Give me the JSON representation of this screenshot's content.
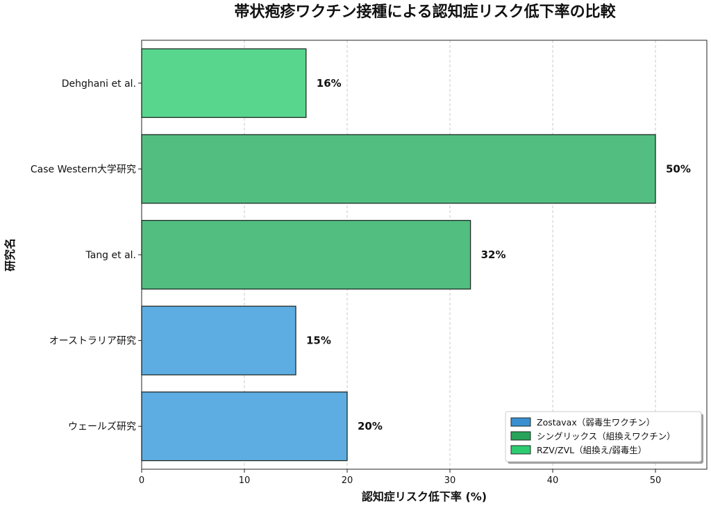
{
  "chart_data": {
    "type": "bar",
    "orientation": "horizontal",
    "title": "帯状疱疹ワクチン接種による認知症リスク低下率の比較",
    "xlabel": "認知症リスク低下率 (%)",
    "ylabel": "研究名",
    "xlim": [
      0,
      55
    ],
    "xticks": [
      0,
      10,
      20,
      30,
      40,
      50
    ],
    "grid": "x-dashed",
    "legend_position": "bottom-right",
    "categories": [
      "ウェールズ研究",
      "オーストラリア研究",
      "Tang et al.",
      "Case Western大学研究",
      "Dehghani et al."
    ],
    "values": [
      20,
      15,
      32,
      50,
      16
    ],
    "data_labels": [
      "20%",
      "15%",
      "32%",
      "50%",
      "16%"
    ],
    "bar_series": [
      0,
      0,
      1,
      1,
      2
    ],
    "series": [
      {
        "name": "Zostavax（弱毒生ワクチン）",
        "color": "#3a8fd0",
        "bar_color": "#5dade2"
      },
      {
        "name": "シングリックス（組換えワクチン）",
        "color": "#27a35a",
        "bar_color": "#52be80"
      },
      {
        "name": "RZV/ZVL（組換え/弱毒生）",
        "color": "#2ecc71",
        "bar_color": "#58d68d"
      }
    ]
  }
}
